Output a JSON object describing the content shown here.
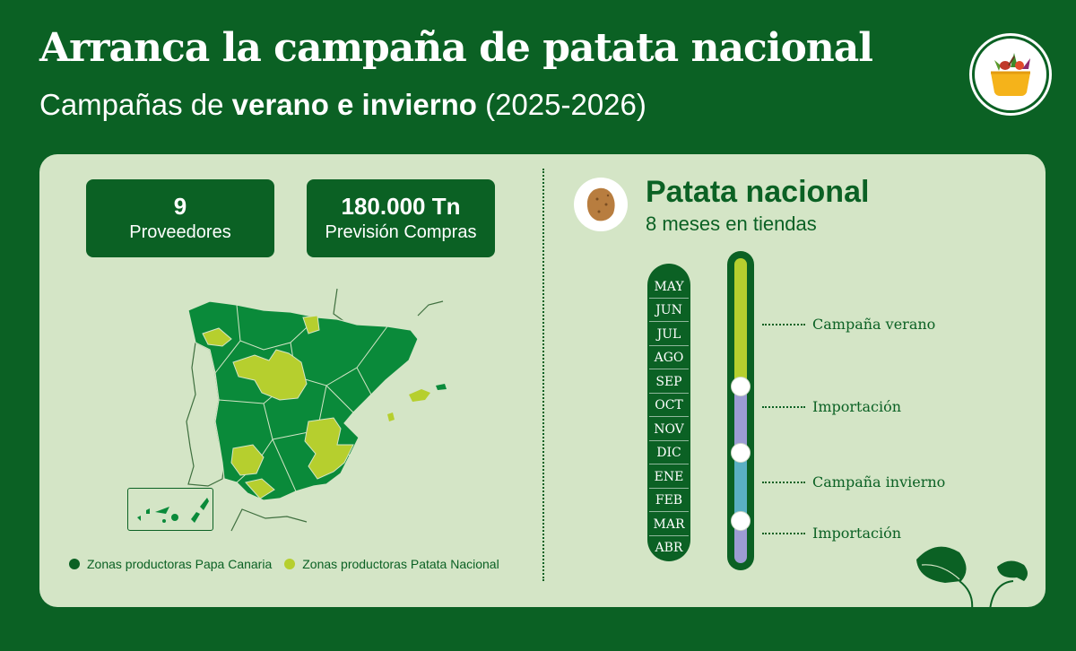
{
  "header": {
    "title": "Arranca la campaña de patata nacional",
    "subtitle_prefix": "Campañas de ",
    "subtitle_bold": "verano e invierno",
    "subtitle_suffix": " (2025-2026)"
  },
  "colors": {
    "brand_green": "#0b6124",
    "panel_bg": "#d4e5c6",
    "papa_canaria": "#0a8a3a",
    "patata_nacional": "#b6cf2e",
    "importacion": "#9c9cd3",
    "campana_invierno": "#5ab0c4"
  },
  "stats": [
    {
      "value": "9",
      "label": "Proveedores"
    },
    {
      "value": "180.000 Tn",
      "label": "Previsión Compras"
    }
  ],
  "legend": [
    {
      "label": "Zonas productoras Papa Canaria",
      "color": "#0b6124"
    },
    {
      "label": "Zonas productoras Patata Nacional",
      "color": "#b6cf2e"
    }
  ],
  "right": {
    "title": "Patata nacional",
    "subtitle": "8 meses en tiendas"
  },
  "months": [
    "MAY",
    "JUN",
    "JUL",
    "AGO",
    "SEP",
    "OCT",
    "NOV",
    "DIC",
    "ENE",
    "FEB",
    "MAR",
    "ABR"
  ],
  "timeline": [
    {
      "label": "Campaña verano",
      "months": [
        "MAY",
        "JUN",
        "JUL",
        "AGO",
        "SEP"
      ],
      "color": "#b6cf2e"
    },
    {
      "label": "Importación",
      "months": [
        "OCT",
        "NOV",
        "DIC"
      ],
      "color": "#9c9cd3"
    },
    {
      "label": "Campaña invierno",
      "months": [
        "ENE",
        "FEB",
        "MAR"
      ],
      "color": "#5ab0c4"
    },
    {
      "label": "Importación",
      "months": [
        "ABR"
      ],
      "color": "#9c9cd3"
    }
  ],
  "icons": {
    "logo": "basket-logo-icon",
    "potato": "potato-icon",
    "decoration": "leaves-icon"
  }
}
